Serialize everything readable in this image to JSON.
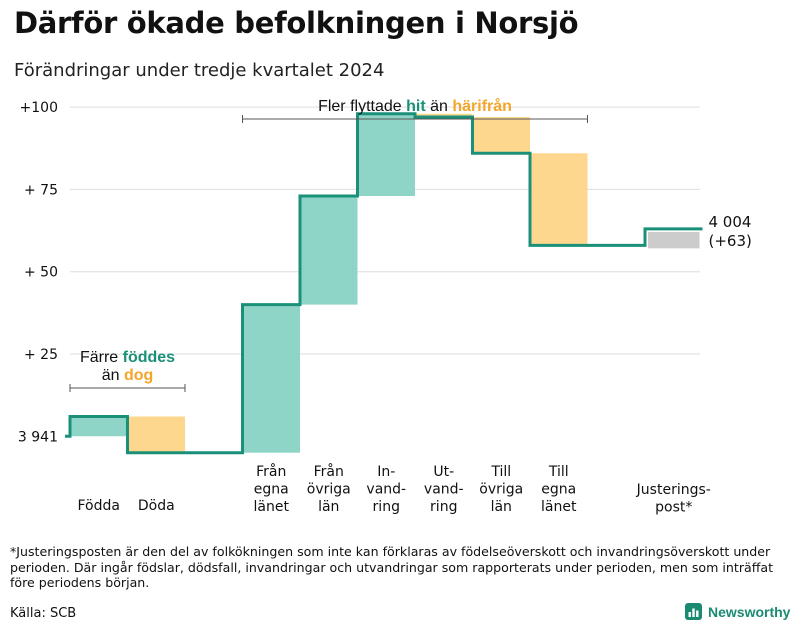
{
  "title": "Därför ökade befolkningen i Norsjö",
  "subtitle": "Förändringar under tredje kvartalet 2024",
  "footnote": "*Justeringsposten är den del av folkökningen som inte kan förklaras av födelseöverskott och invandringsöverskott under perioden. Där ingår födslar, dödsfall, invandringar och utvandringar som rapporterats under perioden, men som inträffat före periodens början.",
  "source": "Källa: SCB",
  "brand": "Newsworthy",
  "colors": {
    "positive": "#8ed5c8",
    "negative": "#fdd78e",
    "adjustment": "#cccccc",
    "line": "#1b9079",
    "text_green": "#1b9079",
    "text_orange": "#f4a52a",
    "grid": "#dddddd"
  },
  "annotations": {
    "births": {
      "line1_pre": "Färre ",
      "line1_em": "föddes",
      "line2_pre": "än ",
      "line2_em": "dog"
    },
    "moves": {
      "pre": "Fler flyttade ",
      "em1": "hit",
      "mid": " än ",
      "em2": "härifrån"
    }
  },
  "chart_data": {
    "type": "waterfall",
    "title": "Därför ökade befolkningen i Norsjö",
    "subtitle": "Förändringar under tredje kvartalet 2024",
    "start_label": "3 941",
    "start_value": 3941,
    "end_label": "4 004",
    "end_change_label": "(+63)",
    "end_value": 4004,
    "yticks": [
      {
        "value": 25,
        "label": "+ 25"
      },
      {
        "value": 50,
        "label": "+ 50"
      },
      {
        "value": 75,
        "label": "+ 75"
      },
      {
        "value": 100,
        "label": "+100"
      }
    ],
    "ylim": [
      -6,
      104
    ],
    "categories": [
      {
        "label": [
          "Födda"
        ],
        "change": 6
      },
      {
        "label": [
          "Döda"
        ],
        "change": -11
      },
      {
        "label": [
          "Från",
          "egna",
          "länet"
        ],
        "change": 45
      },
      {
        "label": [
          "Från",
          "övriga",
          "län"
        ],
        "change": 33
      },
      {
        "label": [
          "In-",
          "vand-",
          "ring"
        ],
        "change": 25
      },
      {
        "label": [
          "Ut-",
          "vand-",
          "ring"
        ],
        "change": -1
      },
      {
        "label": [
          "Till",
          "övriga",
          "län"
        ],
        "change": -11
      },
      {
        "label": [
          "Till",
          "egna",
          "länet"
        ],
        "change": -28
      },
      {
        "label": [
          "Justerings-",
          "post*"
        ],
        "change": 5
      }
    ]
  }
}
